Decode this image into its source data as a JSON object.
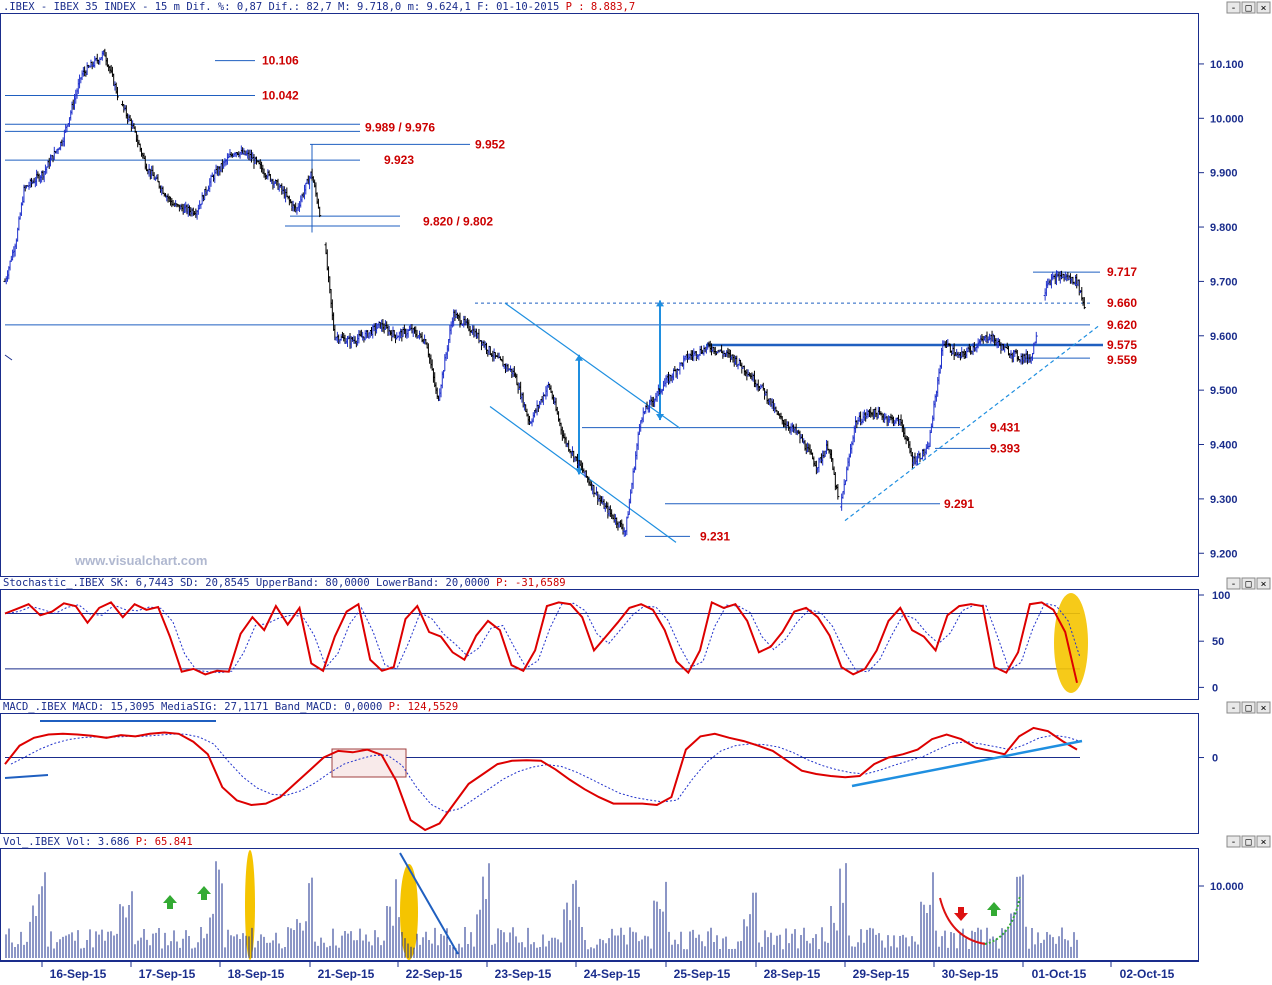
{
  "headers": {
    "price": {
      "prefix": ".IBEX - IBEX 35 INDEX -  15 m Dif. %: 0,87 Dif.: 82,7 M: 9.718,0 m: 9.624,1 F: 01-10-2015 ",
      "value": "P : 8.883,7"
    },
    "stoch": {
      "prefix": "Stochastic_.IBEX SK: 6,7443 SD: 20,8545 UpperBand: 80,0000 LowerBand: 20,0000 ",
      "value": "P: -31,6589"
    },
    "macd": {
      "prefix": "MACD_.IBEX MACD: 15,3095 MediaSIG: 27,1171 Band_MACD: 0,0000 ",
      "value": "P: 124,5529"
    },
    "vol": {
      "prefix": "Vol_.IBEX Vol: 3.686 ",
      "value": "P: 65.841"
    }
  },
  "watermark": "www.visualchart.com",
  "dates": [
    "16-Sep-15",
    "17-Sep-15",
    "18-Sep-15",
    "21-Sep-15",
    "22-Sep-15",
    "23-Sep-15",
    "24-Sep-15",
    "25-Sep-15",
    "28-Sep-15",
    "29-Sep-15",
    "30-Sep-15",
    "01-Oct-15",
    "02-Oct-15"
  ],
  "colors": {
    "axis": "#1a2d8c",
    "level": "#cc0000",
    "up": "#2233cc",
    "down": "#000000",
    "signal": "#2233cc",
    "main": "#dd0000",
    "highlight": "#f5c400"
  },
  "chart_data": [
    {
      "type": "line",
      "series_style": "ohlc-bars",
      "x": [
        "16-Sep-15",
        "17-Sep-15",
        "18-Sep-15",
        "21-Sep-15",
        "22-Sep-15",
        "23-Sep-15",
        "24-Sep-15",
        "25-Sep-15",
        "28-Sep-15",
        "29-Sep-15",
        "30-Sep-15",
        "01-Oct-15"
      ],
      "price_path": [
        [
          0,
          9700
        ],
        [
          0.3,
          9780
        ],
        [
          0.5,
          9870
        ],
        [
          1,
          9900
        ],
        [
          1.5,
          9960
        ],
        [
          2,
          10080
        ],
        [
          2.6,
          10120
        ],
        [
          3,
          10030
        ],
        [
          3.3,
          9990
        ],
        [
          3.7,
          9910
        ],
        [
          4,
          9880
        ],
        [
          4.4,
          9840
        ],
        [
          4.8,
          9830
        ],
        [
          5,
          9830
        ],
        [
          5.4,
          9890
        ],
        [
          6,
          9940
        ],
        [
          6.4,
          9930
        ],
        [
          6.8,
          9900
        ],
        [
          7.2,
          9870
        ],
        [
          7.6,
          9830
        ],
        [
          8,
          9900
        ],
        [
          8.3,
          9800
        ],
        [
          8.6,
          9600
        ],
        [
          9,
          9590
        ],
        [
          9.4,
          9600
        ],
        [
          9.8,
          9620
        ],
        [
          10.2,
          9600
        ],
        [
          10.6,
          9610
        ],
        [
          11,
          9590
        ],
        [
          11.3,
          9480
        ],
        [
          11.7,
          9640
        ],
        [
          12.2,
          9610
        ],
        [
          12.8,
          9560
        ],
        [
          13.3,
          9530
        ],
        [
          13.7,
          9440
        ],
        [
          14.2,
          9510
        ],
        [
          14.6,
          9410
        ],
        [
          15.1,
          9350
        ],
        [
          15.6,
          9290
        ],
        [
          16.2,
          9240
        ],
        [
          16.6,
          9450
        ],
        [
          17.2,
          9510
        ],
        [
          17.8,
          9560
        ],
        [
          18.4,
          9580
        ],
        [
          19,
          9560
        ],
        [
          19.3,
          9540
        ],
        [
          19.8,
          9500
        ],
        [
          20.2,
          9450
        ],
        [
          20.7,
          9420
        ],
        [
          21.2,
          9360
        ],
        [
          21.5,
          9400
        ],
        [
          21.8,
          9280
        ],
        [
          22.2,
          9440
        ],
        [
          22.6,
          9460
        ],
        [
          23,
          9450
        ],
        [
          23.4,
          9440
        ],
        [
          23.7,
          9370
        ],
        [
          24.1,
          9390
        ],
        [
          24.5,
          9590
        ],
        [
          24.9,
          9560
        ],
        [
          25.3,
          9580
        ],
        [
          25.7,
          9600
        ],
        [
          26.1,
          9575
        ],
        [
          26.5,
          9560
        ],
        [
          26.8,
          9560
        ],
        [
          27.2,
          9700
        ],
        [
          27.6,
          9710
        ],
        [
          28,
          9700
        ],
        [
          28.2,
          9650
        ]
      ],
      "levels": [
        "10.106",
        "10.042",
        "9.989 / 9.976",
        "9.952",
        "9.923",
        "9.820 / 9.802",
        "9.717",
        "9.660",
        "9.620",
        "9.575",
        "9.559",
        "9.431",
        "9.393",
        "9.291",
        "9.231"
      ],
      "y_ticks": [
        "10.100",
        "10.000",
        "9.900",
        "9.800",
        "9.700",
        "9.600",
        "9.500",
        "9.400",
        "9.300",
        "9.200"
      ],
      "ylim": [
        9160,
        10190
      ]
    },
    {
      "type": "line",
      "name": "Stochastic",
      "y_ticks": [
        "100",
        "50",
        "0"
      ],
      "bands": [
        80,
        20
      ],
      "ylim": [
        -5,
        100
      ],
      "values": [
        80,
        85,
        90,
        78,
        82,
        91,
        88,
        70,
        86,
        92,
        76,
        90,
        84,
        87,
        55,
        17,
        20,
        14,
        18,
        17,
        58,
        76,
        62,
        88,
        68,
        86,
        26,
        18,
        55,
        82,
        90,
        30,
        18,
        22,
        74,
        88,
        60,
        55,
        38,
        30,
        56,
        72,
        62,
        24,
        18,
        40,
        88,
        92,
        90,
        76,
        40,
        55,
        70,
        86,
        90,
        84,
        62,
        28,
        16,
        40,
        92,
        86,
        90,
        72,
        38,
        44,
        60,
        82,
        86,
        76,
        56,
        22,
        14,
        20,
        40,
        72,
        86,
        62,
        55,
        40,
        78,
        88,
        90,
        88,
        22,
        16,
        38,
        90,
        92,
        84,
        60,
        5
      ]
    },
    {
      "type": "line",
      "name": "MACD",
      "y_ticks": [
        "0"
      ],
      "ylim": [
        -110,
        60
      ],
      "values": [
        -10,
        18,
        30,
        35,
        36,
        35,
        33,
        30,
        34,
        32,
        36,
        38,
        36,
        24,
        5,
        -45,
        -65,
        -72,
        -70,
        -60,
        -40,
        -20,
        0,
        10,
        8,
        12,
        4,
        -35,
        -95,
        -110,
        -100,
        -70,
        -40,
        -25,
        -10,
        -5,
        -4,
        -5,
        -18,
        -34,
        -48,
        -60,
        -70,
        -70,
        -70,
        -72,
        -60,
        12,
        32,
        36,
        30,
        25,
        18,
        10,
        -5,
        -20,
        -25,
        -28,
        -30,
        -28,
        -10,
        0,
        5,
        12,
        28,
        35,
        28,
        15,
        10,
        5,
        32,
        45,
        40,
        25,
        12
      ]
    },
    {
      "type": "bar",
      "name": "Volume",
      "y_ticks": [
        "10.000"
      ],
      "ylim": [
        0,
        15000
      ]
    }
  ]
}
